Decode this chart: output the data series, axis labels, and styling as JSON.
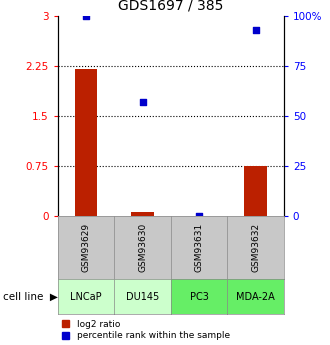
{
  "title": "GDS1697 / 385",
  "samples": [
    "GSM93629",
    "GSM93630",
    "GSM93631",
    "GSM93632"
  ],
  "cell_lines": [
    "LNCaP",
    "DU145",
    "PC3",
    "MDA-2A"
  ],
  "cell_line_colors": [
    "#ccffcc",
    "#ccffcc",
    "#66ee66",
    "#66ee66"
  ],
  "sample_box_color": "#c8c8c8",
  "log2_ratios": [
    2.2,
    0.05,
    0.0,
    0.75
  ],
  "percentile_ranks": [
    100.0,
    57.0,
    0.0,
    93.0
  ],
  "ylim_left": [
    0,
    3
  ],
  "ylim_right": [
    0,
    100
  ],
  "yticks_left": [
    0,
    0.75,
    1.5,
    2.25,
    3
  ],
  "ytick_labels_left": [
    "0",
    "0.75",
    "1.5",
    "2.25",
    "3"
  ],
  "yticks_right": [
    0,
    25,
    50,
    75,
    100
  ],
  "ytick_labels_right": [
    "0",
    "25",
    "50",
    "75",
    "100%"
  ],
  "hlines": [
    0.75,
    1.5,
    2.25
  ],
  "bar_color": "#bb2000",
  "dot_color": "#0000cc",
  "bar_width": 0.4,
  "dot_size": 25,
  "legend_items": [
    "log2 ratio",
    "percentile rank within the sample"
  ],
  "legend_colors": [
    "#bb2000",
    "#0000cc"
  ],
  "cell_line_label": "cell line"
}
